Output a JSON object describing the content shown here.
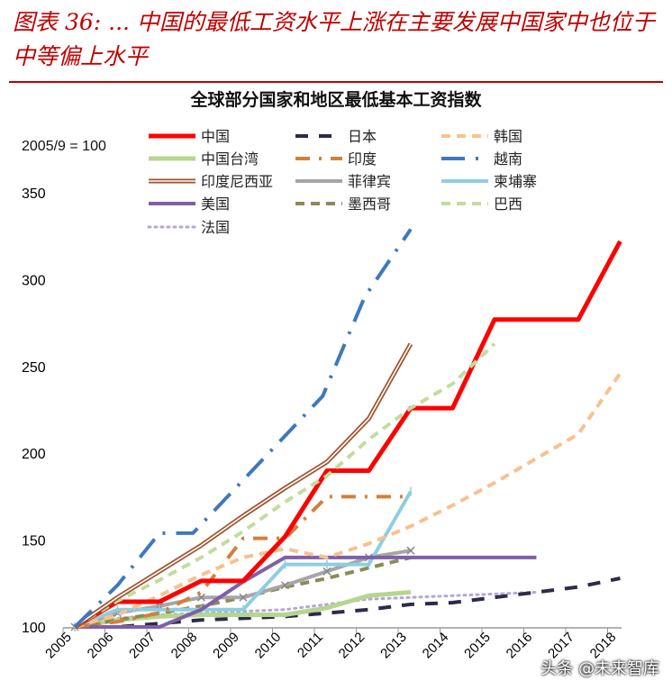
{
  "figure_title": "图表 36: ... 中国的最低工资水平上涨在主要发展中国家中也位于中等偏上水平",
  "watermark": "头条 @未来智库",
  "chart_data": {
    "type": "line",
    "title": "全球部分国家和地区最低基本工资指数",
    "note": "2005/9 = 100",
    "xlabel": "",
    "ylabel": "",
    "ylim": [
      100,
      350
    ],
    "yticks": [
      100,
      150,
      200,
      250,
      300,
      350
    ],
    "xlim": [
      2005,
      2018
    ],
    "xticks": [
      2005,
      2006,
      2007,
      2008,
      2009,
      2010,
      2011,
      2012,
      2013,
      2014,
      2015,
      2016,
      2017,
      2018
    ],
    "grid": false,
    "legend": "top",
    "series": [
      {
        "name": "中国",
        "color": "#ff0000",
        "style": "solid-thick",
        "x": [
          2005.28,
          2006.3,
          2007.3,
          2008.3,
          2009.3,
          2010.3,
          2011.3,
          2012.3,
          2013.3,
          2014.3,
          2015.3,
          2017.3,
          2018.3
        ],
        "y": [
          100,
          114.5,
          114.5,
          126.5,
          126.5,
          152,
          190,
          190,
          226,
          226,
          277,
          277,
          322
        ]
      },
      {
        "name": "日本",
        "color": "#2e2a4a",
        "style": "long-dash",
        "x": [
          2005.28,
          2006.3,
          2007.3,
          2008.3,
          2009.3,
          2010.3,
          2011.3,
          2012.3,
          2013.3,
          2014.3,
          2015.3,
          2016.3,
          2017.3,
          2018.3
        ],
        "y": [
          100,
          100,
          102,
          104,
          105,
          106,
          108,
          110,
          113,
          114,
          117,
          120,
          123,
          128
        ]
      },
      {
        "name": "韩国",
        "color": "#f9c08f",
        "style": "dash",
        "x": [
          2005.28,
          2006.3,
          2007.3,
          2008.3,
          2009.3,
          2010.3,
          2011.3,
          2012.3,
          2013.3,
          2014.3,
          2015.3,
          2016.3,
          2017.3,
          2018.3
        ],
        "y": [
          100,
          107,
          118,
          130,
          140,
          145,
          140,
          148,
          158,
          170,
          183,
          197,
          211,
          246
        ]
      },
      {
        "name": "中国台湾",
        "color": "#b5d68f",
        "style": "solid-thick",
        "x": [
          2005.28,
          2006.3,
          2007.3,
          2008.3,
          2009.3,
          2010.3,
          2011.3,
          2012.3,
          2013.3
        ],
        "y": [
          100,
          104,
          106,
          107,
          107,
          107,
          111,
          118,
          120
        ]
      },
      {
        "name": "印度",
        "color": "#d3803a",
        "style": "dash-dot",
        "x": [
          2005.28,
          2006.3,
          2007.3,
          2008.3,
          2009.3,
          2010.3,
          2011.3,
          2012.3,
          2013.3
        ],
        "y": [
          100,
          103,
          108,
          120,
          151,
          151,
          175,
          175,
          175
        ]
      },
      {
        "name": "越南",
        "color": "#3e78be",
        "style": "dash-dot-long",
        "x": [
          2005.28,
          2006.3,
          2007.3,
          2008.1,
          2009.2,
          2011.2,
          2012.2,
          2013.3
        ],
        "y": [
          100,
          124,
          154,
          154,
          182,
          233,
          290,
          329
        ]
      },
      {
        "name": "印度尼西亚",
        "color": "#a0522d",
        "style": "double",
        "x": [
          2005.28,
          2006.3,
          2007.3,
          2008.3,
          2009.3,
          2010.3,
          2011.3,
          2012.3,
          2013.3
        ],
        "y": [
          100,
          117,
          132,
          147,
          164,
          180,
          195,
          220,
          263
        ]
      },
      {
        "name": "菲律宾",
        "color": "#a6a6a6",
        "style": "solid-x",
        "x": [
          2005.28,
          2006.3,
          2007.3,
          2008.3,
          2009.3,
          2010.3,
          2011.3,
          2012.3,
          2013.3
        ],
        "y": [
          100,
          108,
          112,
          117,
          117,
          124,
          132,
          140,
          144
        ]
      },
      {
        "name": "柬埔寨",
        "color": "#8fcde0",
        "style": "solid-plus",
        "x": [
          2005.28,
          2006.3,
          2007.3,
          2008.3,
          2009.3,
          2010.3,
          2011.3,
          2012.3,
          2013.3
        ],
        "y": [
          100,
          110,
          110,
          110,
          110,
          136,
          136,
          136,
          178
        ]
      },
      {
        "name": "美国",
        "color": "#7f5fa8",
        "style": "solid",
        "x": [
          2005.28,
          2007.3,
          2008.3,
          2009.3,
          2010.3,
          2011.3,
          2012.3,
          2013.3,
          2014.3,
          2015.3,
          2016.3
        ],
        "y": [
          100,
          100,
          110,
          126,
          140,
          140,
          140,
          140,
          140,
          140,
          140
        ]
      },
      {
        "name": "墨西哥",
        "color": "#8c8a58",
        "style": "dash",
        "x": [
          2005.28,
          2006.3,
          2007.3,
          2008.3,
          2009.3,
          2010.3,
          2011.3,
          2012.3,
          2013.3
        ],
        "y": [
          100,
          104,
          108,
          112,
          117,
          123,
          128,
          134,
          140
        ]
      },
      {
        "name": "巴西",
        "color": "#c3dc9c",
        "style": "dash",
        "x": [
          2005.28,
          2006.3,
          2007.3,
          2008.3,
          2009.3,
          2010.3,
          2011.3,
          2012.3,
          2013.3,
          2014.3,
          2015.3
        ],
        "y": [
          100,
          115,
          127,
          140,
          155,
          172,
          187,
          208,
          226,
          240,
          263
        ]
      },
      {
        "name": "法国",
        "color": "#b6a6d6",
        "style": "dot",
        "x": [
          2005.28,
          2006.3,
          2007.3,
          2008.3,
          2009.3,
          2010.3,
          2011.3,
          2012.3,
          2013.3,
          2014.3,
          2015.3,
          2016.3
        ],
        "y": [
          100,
          105,
          107,
          108,
          109,
          110,
          113,
          116,
          117,
          118,
          119,
          120
        ]
      }
    ]
  }
}
